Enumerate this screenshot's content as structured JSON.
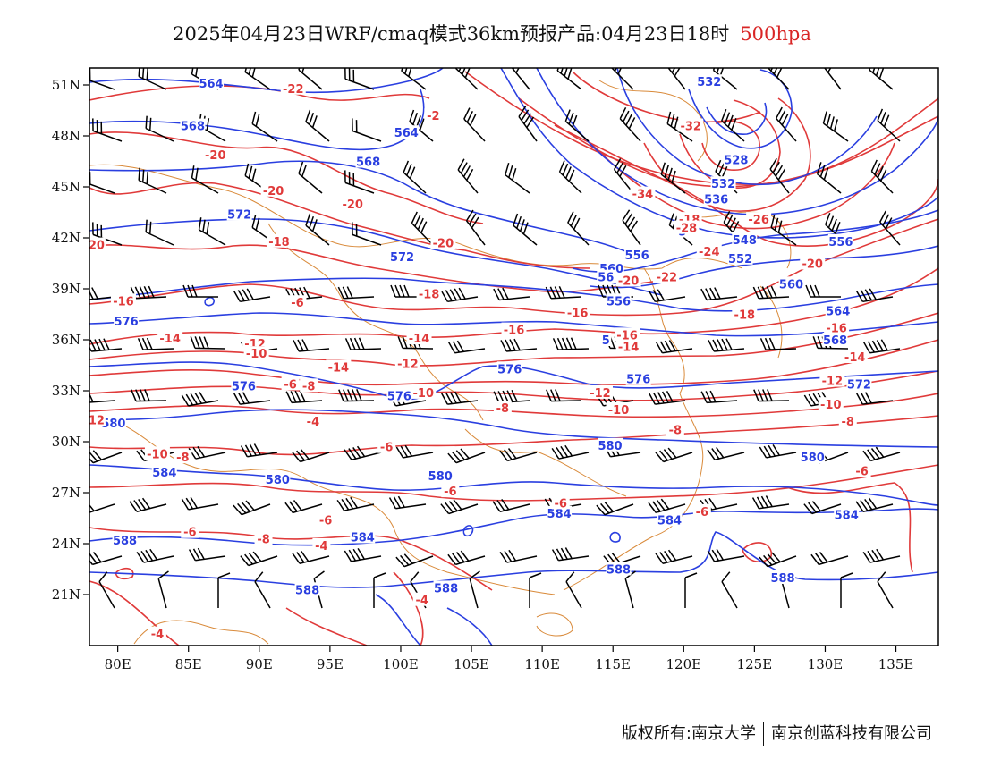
{
  "title": {
    "main": "2025年04月23日WRF/cmaq模式36km预报产品:04月23日18时",
    "level": "500hpa",
    "level_color": "#d92626"
  },
  "footer": {
    "copyright": "版权所有:南京大学",
    "org": "南京创蓝科技有限公司"
  },
  "colors": {
    "height_contour": "#2a3fe0",
    "temperature_contour": "#e03a3a",
    "coastline_border": "#d98a3a",
    "wind_barb": "#000000"
  },
  "map": {
    "lon_range": [
      78,
      138
    ],
    "lat_range": [
      18,
      52
    ],
    "x_ticks": [
      "80E",
      "85E",
      "90E",
      "95E",
      "100E",
      "105E",
      "110E",
      "115E",
      "120E",
      "125E",
      "130E",
      "135E"
    ],
    "y_ticks": [
      "51N",
      "48N",
      "45N",
      "42N",
      "39N",
      "36N",
      "33N",
      "30N",
      "27N",
      "24N",
      "21N"
    ],
    "height_labels": [
      {
        "text": "564",
        "lon": 86.6,
        "lat": 51.1
      },
      {
        "text": "568",
        "lon": 85.3,
        "lat": 48.6
      },
      {
        "text": "564",
        "lon": 100.4,
        "lat": 48.2
      },
      {
        "text": "568",
        "lon": 97.7,
        "lat": 46.5
      },
      {
        "text": "572",
        "lon": 88.6,
        "lat": 43.4
      },
      {
        "text": "572",
        "lon": 100.1,
        "lat": 40.9
      },
      {
        "text": "576",
        "lon": 80.6,
        "lat": 37.1
      },
      {
        "text": "576",
        "lon": 88.9,
        "lat": 33.3
      },
      {
        "text": "576",
        "lon": 99.9,
        "lat": 32.7
      },
      {
        "text": "576",
        "lon": 107.7,
        "lat": 34.3
      },
      {
        "text": "576",
        "lon": 116.8,
        "lat": 33.7
      },
      {
        "text": "580",
        "lon": 79.7,
        "lat": 31.1
      },
      {
        "text": "580",
        "lon": 114.8,
        "lat": 29.8
      },
      {
        "text": "580",
        "lon": 129.1,
        "lat": 29.1
      },
      {
        "text": "580",
        "lon": 91.3,
        "lat": 27.8
      },
      {
        "text": "580",
        "lon": 102.8,
        "lat": 28.0
      },
      {
        "text": "584",
        "lon": 83.3,
        "lat": 28.2
      },
      {
        "text": "584",
        "lon": 111.2,
        "lat": 25.8
      },
      {
        "text": "584",
        "lon": 119.0,
        "lat": 25.4
      },
      {
        "text": "584",
        "lon": 131.5,
        "lat": 25.7
      },
      {
        "text": "584",
        "lon": 97.3,
        "lat": 24.4
      },
      {
        "text": "588",
        "lon": 80.5,
        "lat": 24.2
      },
      {
        "text": "588",
        "lon": 93.4,
        "lat": 21.3
      },
      {
        "text": "588",
        "lon": 103.2,
        "lat": 21.4
      },
      {
        "text": "588",
        "lon": 115.4,
        "lat": 22.5
      },
      {
        "text": "588",
        "lon": 127.0,
        "lat": 22.0
      },
      {
        "text": "532",
        "lon": 121.8,
        "lat": 51.2
      },
      {
        "text": "528",
        "lon": 123.7,
        "lat": 46.6
      },
      {
        "text": "532",
        "lon": 122.8,
        "lat": 45.2
      },
      {
        "text": "536",
        "lon": 122.3,
        "lat": 44.3
      },
      {
        "text": "548",
        "lon": 124.3,
        "lat": 41.9
      },
      {
        "text": "552",
        "lon": 124.0,
        "lat": 40.8
      },
      {
        "text": "556",
        "lon": 131.1,
        "lat": 41.8
      },
      {
        "text": "560",
        "lon": 127.6,
        "lat": 39.3
      },
      {
        "text": "564",
        "lon": 130.9,
        "lat": 37.7
      },
      {
        "text": "568",
        "lon": 130.7,
        "lat": 36.0
      },
      {
        "text": "572",
        "lon": 132.4,
        "lat": 33.4
      },
      {
        "text": "556",
        "lon": 115.4,
        "lat": 38.3
      },
      {
        "text": "560",
        "lon": 114.9,
        "lat": 40.2
      },
      {
        "text": "556",
        "lon": 116.7,
        "lat": 41.0
      },
      {
        "text": "56",
        "lon": 114.5,
        "lat": 39.7
      },
      {
        "text": "5",
        "lon": 119.9,
        "lat": 42.4
      },
      {
        "text": "5",
        "lon": 114.5,
        "lat": 36.0
      }
    ],
    "temp_labels": [
      {
        "text": "-22",
        "lon": 92.4,
        "lat": 50.8
      },
      {
        "text": "-2",
        "lon": 102.3,
        "lat": 49.2
      },
      {
        "text": "-20",
        "lon": 86.9,
        "lat": 46.9
      },
      {
        "text": "-20",
        "lon": 91.0,
        "lat": 44.8
      },
      {
        "text": "-20",
        "lon": 96.6,
        "lat": 44.0
      },
      {
        "text": "-32",
        "lon": 120.5,
        "lat": 48.6
      },
      {
        "text": "-34",
        "lon": 117.1,
        "lat": 44.6
      },
      {
        "text": "-18",
        "lon": 120.4,
        "lat": 43.1
      },
      {
        "text": "-28",
        "lon": 120.2,
        "lat": 42.6
      },
      {
        "text": "-26",
        "lon": 125.3,
        "lat": 43.1
      },
      {
        "text": "-24",
        "lon": 121.8,
        "lat": 41.2
      },
      {
        "text": "-20",
        "lon": 129.1,
        "lat": 40.5
      },
      {
        "text": "-22",
        "lon": 118.8,
        "lat": 39.7
      },
      {
        "text": "-20",
        "lon": 116.1,
        "lat": 39.5
      },
      {
        "text": "-18",
        "lon": 91.4,
        "lat": 41.8
      },
      {
        "text": "-20",
        "lon": 103.0,
        "lat": 41.7
      },
      {
        "text": "20",
        "lon": 78.5,
        "lat": 41.6
      },
      {
        "text": "-18",
        "lon": 102.0,
        "lat": 38.7
      },
      {
        "text": "-16",
        "lon": 80.4,
        "lat": 38.3
      },
      {
        "text": "-16",
        "lon": 112.5,
        "lat": 37.6
      },
      {
        "text": "-18",
        "lon": 124.3,
        "lat": 37.5
      },
      {
        "text": "-16",
        "lon": 108.0,
        "lat": 36.6
      },
      {
        "text": "-16",
        "lon": 116.0,
        "lat": 36.3
      },
      {
        "text": "-16",
        "lon": 130.8,
        "lat": 36.7
      },
      {
        "text": "-14",
        "lon": 83.7,
        "lat": 36.1
      },
      {
        "text": "-14",
        "lon": 101.3,
        "lat": 36.1
      },
      {
        "text": "-14",
        "lon": 116.1,
        "lat": 35.6
      },
      {
        "text": "-14",
        "lon": 132.1,
        "lat": 35.0
      },
      {
        "text": "-14",
        "lon": 95.6,
        "lat": 34.4
      },
      {
        "text": "-12",
        "lon": 89.7,
        "lat": 35.8
      },
      {
        "text": "-12",
        "lon": 100.5,
        "lat": 34.6
      },
      {
        "text": "-12",
        "lon": 114.1,
        "lat": 32.9
      },
      {
        "text": "-12",
        "lon": 130.5,
        "lat": 33.6
      },
      {
        "text": "-10",
        "lon": 89.8,
        "lat": 35.2
      },
      {
        "text": "-10",
        "lon": 101.6,
        "lat": 32.9
      },
      {
        "text": "-10",
        "lon": 115.4,
        "lat": 31.9
      },
      {
        "text": "-10",
        "lon": 130.4,
        "lat": 32.2
      },
      {
        "text": "-8",
        "lon": 93.5,
        "lat": 33.3
      },
      {
        "text": "-8",
        "lon": 107.2,
        "lat": 32.0
      },
      {
        "text": "-8",
        "lon": 119.4,
        "lat": 30.7
      },
      {
        "text": "-8",
        "lon": 131.6,
        "lat": 31.2
      },
      {
        "text": "-8",
        "lon": 84.6,
        "lat": 29.1
      },
      {
        "text": "-6",
        "lon": 92.2,
        "lat": 33.4
      },
      {
        "text": "-6",
        "lon": 99.0,
        "lat": 29.7
      },
      {
        "text": "-6",
        "lon": 103.5,
        "lat": 27.1
      },
      {
        "text": "-6",
        "lon": 111.3,
        "lat": 26.4
      },
      {
        "text": "-6",
        "lon": 121.3,
        "lat": 25.9
      },
      {
        "text": "-6",
        "lon": 132.6,
        "lat": 28.3
      },
      {
        "text": "-6",
        "lon": 94.7,
        "lat": 25.4
      },
      {
        "text": "-6",
        "lon": 85.1,
        "lat": 24.7
      },
      {
        "text": "-6",
        "lon": 92.7,
        "lat": 38.2
      },
      {
        "text": "-4",
        "lon": 93.8,
        "lat": 31.2
      },
      {
        "text": "-4",
        "lon": 94.4,
        "lat": 23.9
      },
      {
        "text": "-4",
        "lon": 101.5,
        "lat": 20.7
      },
      {
        "text": "-4",
        "lon": 82.8,
        "lat": 18.7
      },
      {
        "text": "-8",
        "lon": 90.3,
        "lat": 24.3
      },
      {
        "text": "-10",
        "lon": 82.8,
        "lat": 29.3
      },
      {
        "text": "12",
        "lon": 78.5,
        "lat": 31.3
      }
    ]
  }
}
